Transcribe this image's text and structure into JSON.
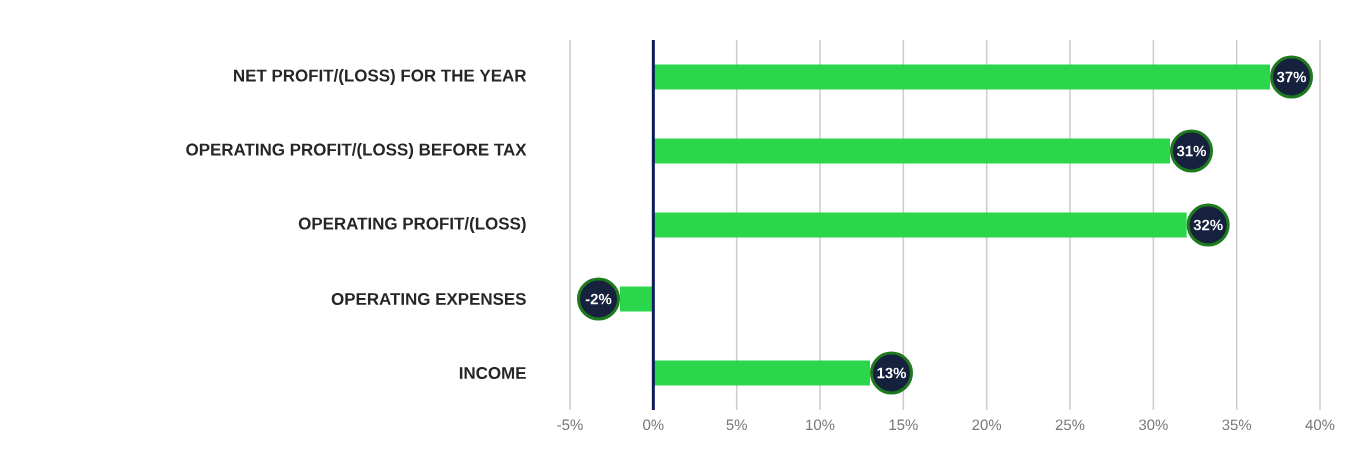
{
  "chart_data": {
    "type": "bar",
    "orientation": "horizontal",
    "categories": [
      "NET PROFIT/(LOSS) FOR THE YEAR",
      "OPERATING PROFIT/(LOSS) BEFORE TAX",
      "OPERATING PROFIT/(LOSS)",
      "OPERATING EXPENSES",
      "INCOME"
    ],
    "values": [
      37,
      31,
      32,
      -2,
      13
    ],
    "value_labels": [
      "37%",
      "31%",
      "32%",
      "-2%",
      "13%"
    ],
    "color": "#2ad64a",
    "xlim": [
      -5,
      40
    ],
    "xticks": [
      {
        "value": -5,
        "label": "-5%"
      },
      {
        "value": 0,
        "label": "0%"
      },
      {
        "value": 5,
        "label": "5%"
      },
      {
        "value": 10,
        "label": "10%"
      },
      {
        "value": 15,
        "label": "15%"
      },
      {
        "value": 20,
        "label": "20%"
      },
      {
        "value": 25,
        "label": "25%"
      },
      {
        "value": 30,
        "label": "30%"
      },
      {
        "value": 35,
        "label": "35%"
      },
      {
        "value": 40,
        "label": "40%"
      }
    ],
    "grid": "x",
    "ref_lines": [
      {
        "axis": "x",
        "value": 0,
        "color": "#0d1a5c"
      }
    ]
  }
}
